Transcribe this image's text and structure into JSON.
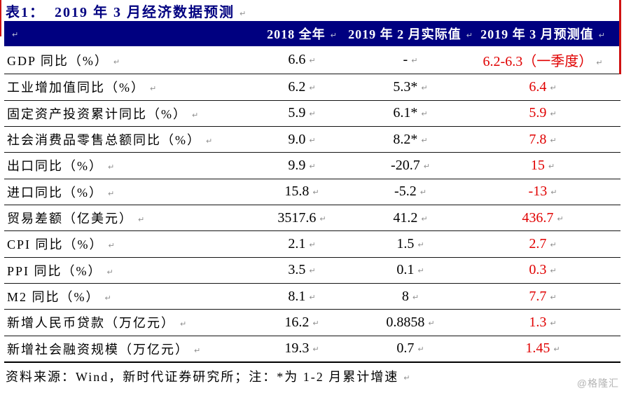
{
  "title": {
    "prefix": "表1：",
    "text": "2019 年 3 月经济数据预测"
  },
  "table": {
    "headers": [
      "",
      "2018 全年",
      "2019 年 2 月实际值",
      "2019 年 3 月预测值"
    ],
    "rows": [
      {
        "label": "GDP 同比（%）",
        "y2018": "6.6",
        "feb": "-",
        "mar": "6.2-6.3（一季度）"
      },
      {
        "label": "工业增加值同比（%）",
        "y2018": "6.2",
        "feb": "5.3*",
        "mar": "6.4"
      },
      {
        "label": "固定资产投资累计同比（%）",
        "y2018": "5.9",
        "feb": "6.1*",
        "mar": "5.9"
      },
      {
        "label": "社会消费品零售总额同比（%）",
        "y2018": "9.0",
        "feb": "8.2*",
        "mar": "7.8"
      },
      {
        "label": "出口同比（%）",
        "y2018": "9.9",
        "feb": "-20.7",
        "mar": "15"
      },
      {
        "label": "进口同比（%）",
        "y2018": "15.8",
        "feb": "-5.2",
        "mar": "-13"
      },
      {
        "label": "贸易差额（亿美元）",
        "y2018": "3517.6",
        "feb": "41.2",
        "mar": "436.7"
      },
      {
        "label": "CPI 同比（%）",
        "y2018": "2.1",
        "feb": "1.5",
        "mar": "2.7"
      },
      {
        "label": "PPI 同比（%）",
        "y2018": "3.5",
        "feb": "0.1",
        "mar": "0.3"
      },
      {
        "label": "M2 同比（%）",
        "y2018": "8.1",
        "feb": "8",
        "mar": "7.7"
      },
      {
        "label": "新增人民币贷款（万亿元）",
        "y2018": "16.2",
        "feb": "0.8858",
        "mar": "1.3"
      },
      {
        "label": "新增社会融资规模（万亿元）",
        "y2018": "19.3",
        "feb": "0.7",
        "mar": "1.45"
      }
    ]
  },
  "footer": {
    "source": "资料来源：Wind，新时代证券研究所；注：*为 1-2 月累计增速"
  },
  "watermark": "@格隆汇",
  "marks": {
    "pilcrow": "↵"
  },
  "colors": {
    "header_bg": "#000080",
    "title": "#000080",
    "forecast_red": "#e00000"
  }
}
